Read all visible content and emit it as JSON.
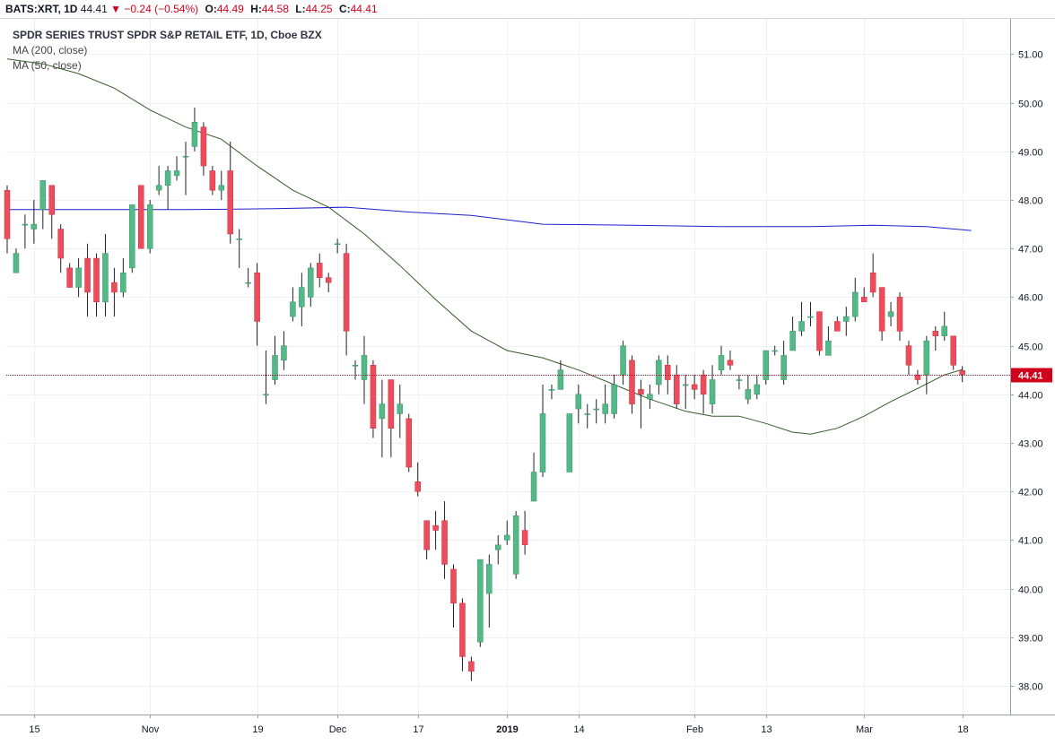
{
  "header": {
    "symbol": "BATS:XRT, 1D",
    "last": "44.41",
    "change_icon": "down-triangle-icon",
    "change": "−0.24 (−0.54%)",
    "o_label": "O:",
    "o": "44.49",
    "h_label": "H:",
    "h": "44.58",
    "l_label": "L:",
    "l": "44.25",
    "c_label": "C:",
    "c": "44.41"
  },
  "legend": {
    "title": "SPDR SERIES TRUST SPDR S&P RETAIL ETF, 1D, Cboe BZX",
    "ma1": "MA (200, close)",
    "ma2": "MA (50, close)"
  },
  "colors": {
    "up": "#53b987",
    "down": "#eb4d5c",
    "ma200": "#1f1fd2",
    "ma50": "#375a2b",
    "price_line": "#d0021b"
  },
  "chart_data": {
    "type": "candlestick",
    "title": "SPDR SERIES TRUST SPDR S&P RETAIL ETF, 1D, Cboe BZX",
    "ylim": [
      37.6,
      51.4
    ],
    "y_ticks": [
      "38.00",
      "39.00",
      "40.00",
      "41.00",
      "42.00",
      "43.00",
      "44.00",
      "45.00",
      "46.00",
      "47.00",
      "48.00",
      "49.00",
      "50.00",
      "51.00"
    ],
    "x_ticks": [
      {
        "label": "15",
        "index": 3
      },
      {
        "label": "Nov",
        "index": 16
      },
      {
        "label": "19",
        "index": 28
      },
      {
        "label": "Dec",
        "index": 37
      },
      {
        "label": "17",
        "index": 46
      },
      {
        "label": "2019",
        "index": 56
      },
      {
        "label": "14",
        "index": 64
      },
      {
        "label": "Feb",
        "index": 77
      },
      {
        "label": "13",
        "index": 85
      },
      {
        "label": "Mar",
        "index": 96
      },
      {
        "label": "18",
        "index": 107
      }
    ],
    "last_price_label": "44.41",
    "candles": [
      [
        48.2,
        47.2,
        48.3,
        46.9
      ],
      [
        46.5,
        46.9,
        47.0,
        46.5
      ],
      [
        47.5,
        47.5,
        47.7,
        47.0
      ],
      [
        47.4,
        47.5,
        48.0,
        47.1
      ],
      [
        47.8,
        48.4,
        48.4,
        47.4
      ],
      [
        48.3,
        47.7,
        48.3,
        47.2
      ],
      [
        47.4,
        46.8,
        47.5,
        46.5
      ],
      [
        46.6,
        46.2,
        46.7,
        46.2
      ],
      [
        46.2,
        46.6,
        46.8,
        46.0
      ],
      [
        46.8,
        46.1,
        47.1,
        45.6
      ],
      [
        46.8,
        45.9,
        46.9,
        45.6
      ],
      [
        45.9,
        46.9,
        47.3,
        45.6
      ],
      [
        46.3,
        46.1,
        46.6,
        45.6
      ],
      [
        46.1,
        46.5,
        46.8,
        46.0
      ],
      [
        46.6,
        47.9,
        47.9,
        46.5
      ],
      [
        48.3,
        47.0,
        48.3,
        47.0
      ],
      [
        47.0,
        47.9,
        48.0,
        46.9
      ],
      [
        48.2,
        48.3,
        48.7,
        48.1
      ],
      [
        48.3,
        48.6,
        48.7,
        47.8
      ],
      [
        48.5,
        48.6,
        48.9,
        48.4
      ],
      [
        48.9,
        48.9,
        49.2,
        48.1
      ],
      [
        49.1,
        49.6,
        49.9,
        49.0
      ],
      [
        49.5,
        48.7,
        49.6,
        48.5
      ],
      [
        48.6,
        48.2,
        48.7,
        48.1
      ],
      [
        48.2,
        48.3,
        48.6,
        48.0
      ],
      [
        48.6,
        47.3,
        49.2,
        47.1
      ],
      [
        47.2,
        47.2,
        47.4,
        46.6
      ],
      [
        46.3,
        46.3,
        46.6,
        46.2
      ],
      [
        46.5,
        45.5,
        46.7,
        45.0
      ],
      [
        44.0,
        44.0,
        44.9,
        43.8
      ],
      [
        44.3,
        44.8,
        45.2,
        44.2
      ],
      [
        44.7,
        45.0,
        45.3,
        44.5
      ],
      [
        45.6,
        45.9,
        46.2,
        45.5
      ],
      [
        45.8,
        46.2,
        46.5,
        45.4
      ],
      [
        46.0,
        46.6,
        46.7,
        45.8
      ],
      [
        46.7,
        46.4,
        46.9,
        46.2
      ],
      [
        46.4,
        46.3,
        46.5,
        46.1
      ],
      [
        47.1,
        47.1,
        47.2,
        46.9
      ],
      [
        46.9,
        45.3,
        47.1,
        44.8
      ],
      [
        44.6,
        44.6,
        44.7,
        44.3
      ],
      [
        44.3,
        44.8,
        45.2,
        43.8
      ],
      [
        44.6,
        43.3,
        44.7,
        43.1
      ],
      [
        43.5,
        43.8,
        44.3,
        42.7
      ],
      [
        44.3,
        43.3,
        44.3,
        42.7
      ],
      [
        43.6,
        43.8,
        44.2,
        43.1
      ],
      [
        43.5,
        42.5,
        43.6,
        42.4
      ],
      [
        42.2,
        42.0,
        42.6,
        41.9
      ],
      [
        41.4,
        40.8,
        41.4,
        40.6
      ],
      [
        41.3,
        41.2,
        41.6,
        40.8
      ],
      [
        41.4,
        40.5,
        41.8,
        40.2
      ],
      [
        40.4,
        39.7,
        40.5,
        39.2
      ],
      [
        39.7,
        38.6,
        39.8,
        38.3
      ],
      [
        38.5,
        38.3,
        38.6,
        38.1
      ],
      [
        38.9,
        40.6,
        40.6,
        38.8
      ],
      [
        39.9,
        40.5,
        40.7,
        39.2
      ],
      [
        40.8,
        40.9,
        41.1,
        40.5
      ],
      [
        41.0,
        41.1,
        41.4,
        40.9
      ],
      [
        40.3,
        41.5,
        41.6,
        40.2
      ],
      [
        41.2,
        40.9,
        41.6,
        40.7
      ],
      [
        41.8,
        42.4,
        42.8,
        41.8
      ],
      [
        42.4,
        43.6,
        44.2,
        42.3
      ],
      [
        44.1,
        44.1,
        44.2,
        43.9
      ],
      [
        44.1,
        44.5,
        44.7,
        44.1
      ],
      [
        42.4,
        43.6,
        43.6,
        42.4
      ],
      [
        43.7,
        44.0,
        44.2,
        43.4
      ],
      [
        43.6,
        43.6,
        43.8,
        43.3
      ],
      [
        43.7,
        43.7,
        43.9,
        43.4
      ],
      [
        43.6,
        43.8,
        44.2,
        43.4
      ],
      [
        43.6,
        44.2,
        44.4,
        43.5
      ],
      [
        44.4,
        45.0,
        45.1,
        44.2
      ],
      [
        44.7,
        43.8,
        44.8,
        43.6
      ],
      [
        44.1,
        44.0,
        44.3,
        43.3
      ],
      [
        43.9,
        44.0,
        44.2,
        43.7
      ],
      [
        44.2,
        44.7,
        44.8,
        44.0
      ],
      [
        44.6,
        44.3,
        44.8,
        44.0
      ],
      [
        44.4,
        43.8,
        44.6,
        43.7
      ],
      [
        44.2,
        44.2,
        44.4,
        43.7
      ],
      [
        44.2,
        44.1,
        44.4,
        43.9
      ],
      [
        44.4,
        44.0,
        44.5,
        43.6
      ],
      [
        43.8,
        44.3,
        44.6,
        43.6
      ],
      [
        44.5,
        44.8,
        45.0,
        44.4
      ],
      [
        44.7,
        44.6,
        44.9,
        44.5
      ],
      [
        44.3,
        44.3,
        44.4,
        44.1
      ],
      [
        43.9,
        44.1,
        44.4,
        43.8
      ],
      [
        44.0,
        44.2,
        44.4,
        43.9
      ],
      [
        44.3,
        44.9,
        44.9,
        44.2
      ],
      [
        44.9,
        44.9,
        45.0,
        44.8
      ],
      [
        44.3,
        44.8,
        45.1,
        44.2
      ],
      [
        44.9,
        45.3,
        45.6,
        44.9
      ],
      [
        45.3,
        45.5,
        45.9,
        45.2
      ],
      [
        45.6,
        45.6,
        45.9,
        45.4
      ],
      [
        45.7,
        44.9,
        45.7,
        44.8
      ],
      [
        44.8,
        45.1,
        45.4,
        44.8
      ],
      [
        45.5,
        45.3,
        45.6,
        45.3
      ],
      [
        45.5,
        45.6,
        45.8,
        45.2
      ],
      [
        45.6,
        46.1,
        46.4,
        45.5
      ],
      [
        46.0,
        45.9,
        46.2,
        45.9
      ],
      [
        46.5,
        46.1,
        46.9,
        46.0
      ],
      [
        46.2,
        45.3,
        46.2,
        45.1
      ],
      [
        45.6,
        45.7,
        45.9,
        45.4
      ],
      [
        46.0,
        45.3,
        46.1,
        45.1
      ],
      [
        45.0,
        44.6,
        45.1,
        44.4
      ],
      [
        44.4,
        44.3,
        44.5,
        44.2
      ],
      [
        44.4,
        45.1,
        45.2,
        44.0
      ],
      [
        45.3,
        45.2,
        45.4,
        44.9
      ],
      [
        45.2,
        45.4,
        45.7,
        45.1
      ],
      [
        45.2,
        44.6,
        45.2,
        44.5
      ],
      [
        44.49,
        44.41,
        44.58,
        44.25
      ]
    ],
    "series": [
      {
        "name": "MA (200, close)",
        "points": [
          [
            0,
            47.8
          ],
          [
            10,
            47.8
          ],
          [
            20,
            47.8
          ],
          [
            30,
            47.82
          ],
          [
            38,
            47.85
          ],
          [
            45,
            47.75
          ],
          [
            52,
            47.68
          ],
          [
            60,
            47.5
          ],
          [
            70,
            47.48
          ],
          [
            80,
            47.45
          ],
          [
            90,
            47.45
          ],
          [
            97,
            47.48
          ],
          [
            103,
            47.45
          ],
          [
            108,
            47.37
          ]
        ]
      },
      {
        "name": "MA (50, close)",
        "points": [
          [
            0,
            50.9
          ],
          [
            4,
            50.8
          ],
          [
            8,
            50.6
          ],
          [
            12,
            50.3
          ],
          [
            16,
            49.85
          ],
          [
            20,
            49.5
          ],
          [
            24,
            49.25
          ],
          [
            28,
            48.7
          ],
          [
            32,
            48.2
          ],
          [
            36,
            47.85
          ],
          [
            40,
            47.3
          ],
          [
            44,
            46.65
          ],
          [
            48,
            45.95
          ],
          [
            52,
            45.3
          ],
          [
            56,
            44.9
          ],
          [
            60,
            44.75
          ],
          [
            64,
            44.5
          ],
          [
            68,
            44.2
          ],
          [
            72,
            43.9
          ],
          [
            76,
            43.65
          ],
          [
            79,
            43.55
          ],
          [
            82,
            43.55
          ],
          [
            85,
            43.4
          ],
          [
            88,
            43.22
          ],
          [
            90,
            43.18
          ],
          [
            93,
            43.3
          ],
          [
            96,
            43.55
          ],
          [
            99,
            43.85
          ],
          [
            102,
            44.12
          ],
          [
            105,
            44.4
          ],
          [
            107,
            44.51
          ]
        ]
      }
    ]
  }
}
